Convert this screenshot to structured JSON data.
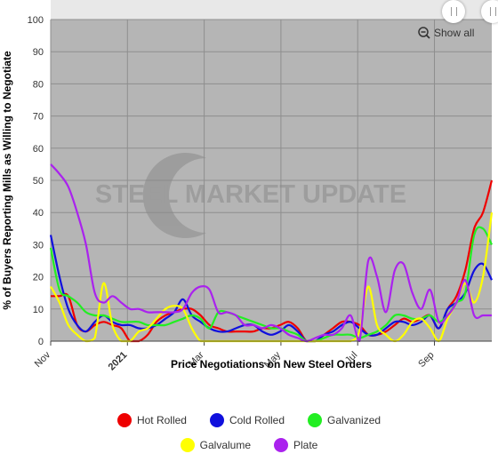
{
  "chart_data": {
    "type": "line",
    "title": "",
    "xlabel": "Price Negotiations on New Steel Orders",
    "ylabel": "% of Buyers Reporting Mills as Willing to Negotiate",
    "ylim": [
      0,
      100
    ],
    "yticks": [
      "0",
      "10",
      "20",
      "30",
      "40",
      "50",
      "60",
      "70",
      "80",
      "90",
      "100"
    ],
    "xlim": [
      0,
      50
    ],
    "xticks": [
      {
        "label": "Nov",
        "x": 0,
        "bold": false
      },
      {
        "label": "2021",
        "x": 8.7,
        "bold": true
      },
      {
        "label": "Mar",
        "x": 17.4,
        "bold": false
      },
      {
        "label": "May",
        "x": 26.1,
        "bold": false
      },
      {
        "label": "Jul",
        "x": 34.8,
        "bold": false
      },
      {
        "label": "Sep",
        "x": 43.5,
        "bold": false
      }
    ],
    "grid": true,
    "watermark": "STEEL MARKET UPDATE",
    "show_all_label": "Show all",
    "legend_position": "bottom",
    "series": [
      {
        "name": "Hot Rolled",
        "color": "#ee0000",
        "x": [
          0,
          1,
          2,
          3,
          4,
          5,
          6,
          7,
          8,
          9,
          10,
          11,
          12,
          13,
          14,
          15,
          16,
          17,
          18,
          19,
          20,
          21,
          22,
          23,
          24,
          25,
          26,
          27,
          28,
          29,
          30,
          31,
          32,
          33,
          34,
          35,
          36,
          37,
          38,
          39,
          40,
          41,
          42,
          43,
          44,
          45,
          46,
          47,
          48,
          49,
          50
        ],
        "y": [
          14,
          14,
          14,
          5,
          3,
          5,
          6,
          5,
          4,
          0,
          0,
          2,
          6,
          8,
          9,
          10,
          10,
          8,
          5,
          4,
          3,
          3,
          3,
          3,
          4,
          4,
          5,
          6,
          4,
          0,
          0,
          2,
          4,
          6,
          6,
          5,
          2,
          2,
          3,
          5,
          7,
          6,
          7,
          8,
          4,
          10,
          14,
          22,
          35,
          40,
          50
        ]
      },
      {
        "name": "Cold Rolled",
        "color": "#1010dd",
        "x": [
          0,
          1,
          2,
          3,
          4,
          5,
          6,
          7,
          8,
          9,
          10,
          11,
          12,
          13,
          14,
          15,
          16,
          17,
          18,
          19,
          20,
          21,
          22,
          23,
          24,
          25,
          26,
          27,
          28,
          29,
          30,
          31,
          32,
          33,
          34,
          35,
          36,
          37,
          38,
          39,
          40,
          41,
          42,
          43,
          44,
          45,
          46,
          47,
          48,
          49,
          50
        ],
        "y": [
          33,
          20,
          10,
          5,
          3,
          6,
          8,
          6,
          5,
          5,
          4,
          4,
          5,
          7,
          9,
          13,
          8,
          6,
          4,
          3,
          3,
          4,
          5,
          5,
          3,
          2,
          3,
          5,
          3,
          0,
          0,
          2,
          3,
          5,
          6,
          4,
          2,
          2,
          4,
          6,
          6,
          5,
          6,
          8,
          4,
          10,
          12,
          15,
          22,
          24,
          19
        ]
      },
      {
        "name": "Galvanized",
        "color": "#22ee22",
        "x": [
          0,
          1,
          2,
          3,
          4,
          5,
          6,
          7,
          8,
          9,
          10,
          11,
          12,
          13,
          14,
          15,
          16,
          17,
          18,
          19,
          20,
          21,
          22,
          23,
          24,
          25,
          26,
          27,
          28,
          29,
          30,
          31,
          32,
          33,
          34,
          35,
          36,
          37,
          38,
          39,
          40,
          41,
          42,
          43,
          44,
          45,
          46,
          47,
          48,
          49,
          50
        ],
        "y": [
          29,
          16,
          14,
          12,
          9,
          8,
          8,
          7,
          6,
          6,
          6,
          5,
          5,
          5,
          6,
          7,
          8,
          7,
          4,
          9,
          9,
          8,
          7,
          6,
          5,
          4,
          4,
          3,
          2,
          0,
          0,
          1,
          2,
          2,
          2,
          1,
          2,
          3,
          5,
          8,
          8,
          7,
          7,
          8,
          6,
          8,
          12,
          15,
          33,
          35,
          30
        ]
      },
      {
        "name": "Galvalume",
        "color": "#ffff00",
        "x": [
          0,
          1,
          2,
          3,
          4,
          5,
          6,
          7,
          8,
          9,
          10,
          11,
          12,
          13,
          14,
          15,
          16,
          17,
          18,
          19,
          20,
          21,
          22,
          23,
          24,
          25,
          26,
          27,
          28,
          29,
          30,
          31,
          32,
          33,
          34,
          35,
          36,
          37,
          38,
          39,
          40,
          41,
          42,
          43,
          44,
          45,
          46,
          47,
          48,
          49,
          50
        ],
        "y": [
          17,
          12,
          5,
          2,
          0,
          1,
          18,
          5,
          0,
          0,
          3,
          4,
          7,
          10,
          11,
          10,
          4,
          0,
          0,
          0,
          0,
          0,
          0,
          0,
          0,
          0,
          0,
          0,
          0,
          0,
          0,
          0,
          0,
          0,
          0,
          3,
          17,
          5,
          2,
          0,
          2,
          6,
          7,
          4,
          0,
          7,
          12,
          18,
          12,
          20,
          40
        ]
      },
      {
        "name": "Plate",
        "color": "#aa22ee",
        "x": [
          0,
          1,
          2,
          3,
          4,
          5,
          6,
          7,
          8,
          9,
          10,
          11,
          12,
          13,
          14,
          15,
          16,
          17,
          18,
          19,
          20,
          21,
          22,
          23,
          24,
          25,
          26,
          27,
          28,
          29,
          30,
          31,
          32,
          33,
          34,
          35,
          36,
          37,
          38,
          39,
          40,
          41,
          42,
          43,
          44,
          45,
          46,
          47,
          48,
          49,
          50
        ],
        "y": [
          55,
          52,
          48,
          40,
          30,
          15,
          12,
          14,
          12,
          10,
          10,
          9,
          9,
          9,
          9,
          10,
          15,
          17,
          16,
          9,
          9,
          8,
          5,
          5,
          4,
          5,
          4,
          2,
          1,
          0,
          1,
          2,
          2,
          4,
          8,
          0,
          25,
          20,
          9,
          22,
          24,
          15,
          10,
          16,
          6,
          8,
          12,
          19,
          8,
          8,
          8
        ]
      }
    ]
  }
}
